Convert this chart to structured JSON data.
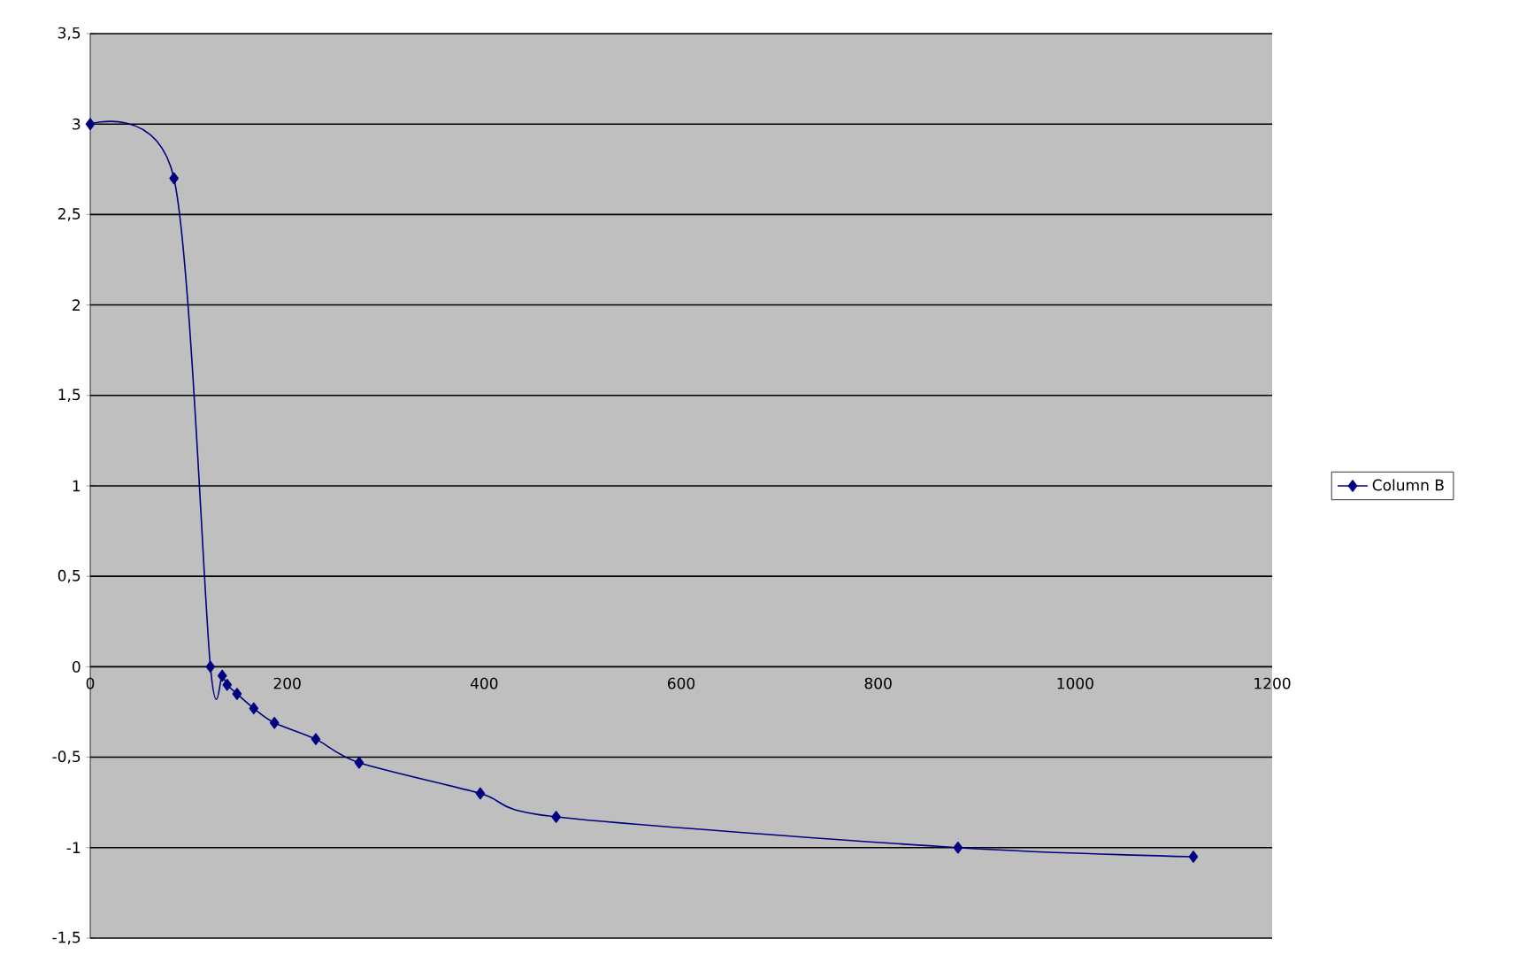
{
  "chart_data": {
    "type": "line",
    "x": [
      0,
      85,
      122,
      134,
      139,
      149,
      166,
      187,
      229,
      273,
      396,
      473,
      881,
      1120
    ],
    "series": [
      {
        "name": "Column B",
        "color": "#000080",
        "values": [
          3,
          2.7,
          0,
          -0.05,
          -0.1,
          -0.15,
          -0.23,
          -0.31,
          -0.4,
          -0.53,
          -0.7,
          -0.83,
          -1.0,
          -1.05
        ]
      }
    ],
    "xlim": [
      0,
      1200
    ],
    "xticks": [
      0,
      200,
      400,
      600,
      800,
      1000,
      1200
    ],
    "ylim": [
      -1.5,
      3.5
    ],
    "yticks": [
      {
        "value": -1.5,
        "label": "-1,5"
      },
      -1,
      {
        "value": -0.5,
        "label": "-0,5"
      },
      0,
      {
        "value": 0.5,
        "label": "0,5"
      },
      1,
      {
        "value": 1.5,
        "label": "1,5"
      },
      2,
      {
        "value": 2.5,
        "label": "2,5"
      },
      3,
      {
        "value": 3.5,
        "label": "3,5"
      }
    ],
    "grid": "y",
    "legend": "right",
    "marker": "diamond"
  }
}
